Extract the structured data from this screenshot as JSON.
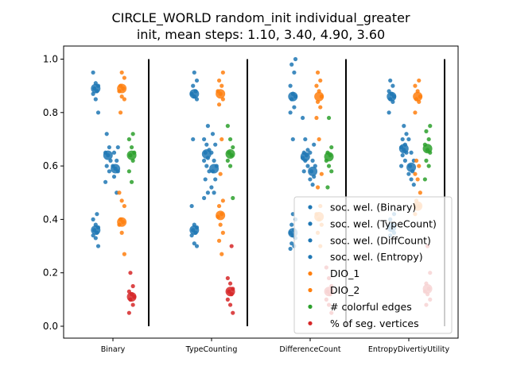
{
  "chart_data": {
    "type": "scatter",
    "title_line1": "CIRCLE_WORLD random_init individual_greater",
    "title_line2": "init, mean steps: 1.10, 3.40, 4.90, 3.60",
    "xlabel": "",
    "ylabel": "",
    "ylim": [
      0.0,
      1.0
    ],
    "yticks": [
      "0.0",
      "0.2",
      "0.4",
      "0.6",
      "0.8",
      "1.0"
    ],
    "categories": [
      "Binary",
      "TypeCounting",
      "DifferenceCount",
      "EntropyDivertiyUtility"
    ],
    "grid": false,
    "legend_placement": "lower-right",
    "series": [
      {
        "name": "soc. wel. (Binary)",
        "color": "#1f77b4",
        "offset": -0.35,
        "mean": [
          0.89,
          0.87,
          0.86,
          0.86
        ],
        "points": [
          [
            0.95,
            0.91,
            0.9,
            0.89,
            0.88,
            0.87,
            0.85,
            0.8
          ],
          [
            0.95,
            0.92,
            0.9,
            0.88,
            0.87,
            0.86,
            0.85,
            0.7
          ],
          [
            1.0,
            0.98,
            0.95,
            0.9,
            0.87,
            0.86,
            0.85,
            0.82,
            0.8,
            0.7
          ],
          [
            0.92,
            0.9,
            0.88,
            0.87,
            0.86,
            0.85,
            0.84,
            0.8
          ]
        ]
      },
      {
        "name": "soc. wel. (TypeCount)",
        "color": "#1f77b4",
        "offset": -0.35,
        "mean": [
          0.36,
          0.36,
          0.35,
          0.37
        ],
        "points": [
          [
            0.42,
            0.4,
            0.38,
            0.37,
            0.36,
            0.35,
            0.34,
            0.33,
            0.3
          ],
          [
            0.45,
            0.38,
            0.37,
            0.36,
            0.35,
            0.34,
            0.31,
            0.3
          ],
          [
            0.42,
            0.4,
            0.38,
            0.36,
            0.35,
            0.34,
            0.33,
            0.31,
            0.3,
            0.29
          ],
          [
            0.42,
            0.4,
            0.38,
            0.37,
            0.36,
            0.35,
            0.34
          ]
        ]
      },
      {
        "name": "soc. wel. (DiffCount)",
        "color": "#1f77b4",
        "offset": -0.1,
        "mean": [
          0.64,
          0.645,
          0.635,
          0.665
        ],
        "points": [
          [
            0.72,
            0.67,
            0.65,
            0.64,
            0.62,
            0.6,
            0.58,
            0.54
          ],
          [
            0.75,
            0.7,
            0.68,
            0.66,
            0.65,
            0.63,
            0.62,
            0.6,
            0.58,
            0.55,
            0.5,
            0.48
          ],
          [
            0.78,
            0.7,
            0.66,
            0.65,
            0.64,
            0.63,
            0.62,
            0.6,
            0.58
          ],
          [
            0.75,
            0.72,
            0.7,
            0.68,
            0.67,
            0.66,
            0.65,
            0.64,
            0.62,
            0.6
          ]
        ]
      },
      {
        "name": "soc. wel. (Entropy)",
        "color": "#1f77b4",
        "offset": 0.05,
        "mean": [
          0.59,
          0.59,
          0.58,
          0.595
        ],
        "points": [
          [
            0.67,
            0.65,
            0.62,
            0.6,
            0.59,
            0.58,
            0.56,
            0.5
          ],
          [
            0.72,
            0.68,
            0.65,
            0.62,
            0.6,
            0.58,
            0.55,
            0.52,
            0.5
          ],
          [
            0.68,
            0.65,
            0.62,
            0.6,
            0.58,
            0.56,
            0.55,
            0.53
          ],
          [
            0.7,
            0.65,
            0.62,
            0.6,
            0.58,
            0.57,
            0.55,
            0.53
          ]
        ]
      },
      {
        "name": "DIO_1",
        "color": "#ff7f0e",
        "offset": 0.18,
        "mean": [
          0.89,
          0.87,
          0.86,
          0.86
        ],
        "points": [
          [
            0.95,
            0.93,
            0.9,
            0.89,
            0.88,
            0.86,
            0.85,
            0.8
          ],
          [
            0.95,
            0.92,
            0.9,
            0.88,
            0.87,
            0.85,
            0.83,
            0.7
          ],
          [
            0.95,
            0.92,
            0.9,
            0.88,
            0.86,
            0.84,
            0.82,
            0.78,
            0.7
          ],
          [
            0.92,
            0.9,
            0.88,
            0.86,
            0.85,
            0.84,
            0.8
          ]
        ]
      },
      {
        "name": "DIO_2",
        "color": "#ff7f0e",
        "offset": 0.18,
        "mean": [
          0.39,
          0.415,
          0.41,
          0.45
        ],
        "points": [
          [
            0.5,
            0.47,
            0.45,
            0.4,
            0.39,
            0.38,
            0.35,
            0.27
          ],
          [
            0.57,
            0.47,
            0.45,
            0.42,
            0.41,
            0.38,
            0.35,
            0.32,
            0.27
          ],
          [
            0.57,
            0.52,
            0.45,
            0.42,
            0.4,
            0.38,
            0.35,
            0.3
          ],
          [
            0.62,
            0.6,
            0.57,
            0.55,
            0.5,
            0.47,
            0.45,
            0.42
          ]
        ]
      },
      {
        "name": "# colorful edges",
        "color": "#2ca02c",
        "offset": 0.38,
        "mean": [
          0.64,
          0.645,
          0.635,
          0.665
        ],
        "points": [
          [
            0.72,
            0.7,
            0.67,
            0.65,
            0.64,
            0.62,
            0.58,
            0.54
          ],
          [
            0.75,
            0.7,
            0.67,
            0.65,
            0.64,
            0.62,
            0.6,
            0.48
          ],
          [
            0.78,
            0.67,
            0.65,
            0.64,
            0.62,
            0.6,
            0.58,
            0.52
          ],
          [
            0.75,
            0.73,
            0.7,
            0.68,
            0.66,
            0.65,
            0.62,
            0.6,
            0.55
          ]
        ]
      },
      {
        "name": "% of seg. vertices",
        "color": "#d62728",
        "offset": 0.38,
        "mean": [
          0.11,
          0.13,
          0.13,
          0.14
        ],
        "points": [
          [
            0.2,
            0.15,
            0.13,
            0.12,
            0.11,
            0.1,
            0.08,
            0.05
          ],
          [
            0.3,
            0.18,
            0.16,
            0.14,
            0.13,
            0.12,
            0.1,
            0.08,
            0.05
          ],
          [
            0.22,
            0.18,
            0.15,
            0.13,
            0.12,
            0.1,
            0.08,
            0.05
          ],
          [
            0.3,
            0.2,
            0.16,
            0.14,
            0.13,
            0.12,
            0.1,
            0.08
          ]
        ]
      }
    ],
    "legend": [
      {
        "label": "soc. wel. (Binary)",
        "color": "#1f77b4"
      },
      {
        "label": "soc. wel. (TypeCount)",
        "color": "#1f77b4"
      },
      {
        "label": "soc. wel. (DiffCount)",
        "color": "#1f77b4"
      },
      {
        "label": "soc. wel. (Entropy)",
        "color": "#1f77b4"
      },
      {
        "label": "DIO_1",
        "color": "#ff7f0e"
      },
      {
        "label": "DIO_2",
        "color": "#ff7f0e"
      },
      {
        "label": "# colorful edges",
        "color": "#2ca02c"
      },
      {
        "label": "% of seg. vertices",
        "color": "#d62728"
      }
    ]
  }
}
